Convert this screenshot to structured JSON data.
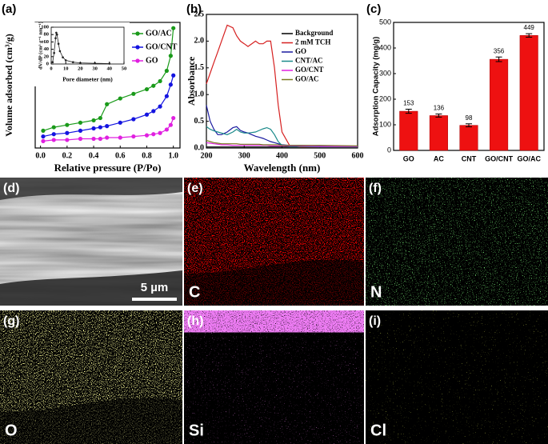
{
  "chart_data": [
    {
      "type": "line",
      "panel_label": "(a)",
      "xlabel": "Relative pressure (P/Po)",
      "ylabel": "Volume adsorbed (cm³/g)",
      "x": [
        0.02,
        0.1,
        0.2,
        0.3,
        0.4,
        0.45,
        0.5,
        0.6,
        0.7,
        0.8,
        0.85,
        0.9,
        0.95,
        0.98,
        1.0
      ],
      "series": [
        {
          "name": "GO/AC",
          "color": "#1a9a1a",
          "values": [
            10,
            13,
            15,
            17,
            19,
            21,
            33,
            38,
            42,
            46,
            49,
            53,
            62,
            75,
            99
          ]
        },
        {
          "name": "GO/CNT",
          "color": "#1414e0",
          "values": [
            5,
            7,
            8,
            10,
            12,
            13,
            14,
            17,
            20,
            24,
            27,
            31,
            40,
            50,
            58
          ]
        },
        {
          "name": "GO",
          "color": "#e020e0",
          "values": [
            1,
            2,
            2,
            3,
            3,
            3,
            4,
            4,
            5,
            6,
            7,
            8,
            11,
            15,
            21
          ]
        }
      ],
      "xlim": [
        -0.04,
        1.05
      ],
      "ylim": [
        -5,
        104
      ],
      "xticks": [
        {
          "value": 0,
          "label": "0.0"
        },
        0.2,
        0.4,
        0.6,
        0.8,
        {
          "value": 1,
          "label": "1.0"
        }
      ],
      "markers": true,
      "legend": "upper-right"
    },
    {
      "type": "line",
      "xlabel": "Pore diameter (nm)",
      "ylabel": "dV/dP (cm³ g⁻¹ nm⁻¹)",
      "x": [
        1,
        2,
        3,
        3.5,
        4,
        5,
        6,
        8,
        10,
        15,
        20,
        30,
        40
      ],
      "values": [
        5,
        30,
        70,
        85,
        80,
        55,
        35,
        18,
        10,
        5,
        3,
        2,
        1
      ],
      "color": "#222222",
      "xlim": [
        0,
        50
      ],
      "ylim": [
        0,
        100
      ],
      "xticks": [
        0,
        10,
        20,
        30,
        40,
        50
      ],
      "yticks": [
        0,
        20,
        40,
        60,
        80,
        100
      ],
      "markers": true
    },
    {
      "type": "line",
      "panel_label": "(b)",
      "xlabel": "Wavelength (nm)",
      "ylabel": "Absorbance",
      "x": [
        200,
        210,
        220,
        230,
        240,
        255,
        270,
        280,
        290,
        300,
        310,
        330,
        340,
        350,
        360,
        370,
        380,
        390,
        400,
        420,
        450,
        500,
        600
      ],
      "series": [
        {
          "name": "Background",
          "color": "#000000",
          "values": [
            0.02,
            0.02,
            0.02,
            0.02,
            0.02,
            0.02,
            0.02,
            0.02,
            0.02,
            0.02,
            0.02,
            0.02,
            0.02,
            0.02,
            0.02,
            0.02,
            0.02,
            0.02,
            0.02,
            0.02,
            0.02,
            0.02,
            0.02
          ]
        },
        {
          "name": "2 mM TCH",
          "color": "#d62020",
          "values": [
            1.2,
            1.4,
            1.6,
            1.8,
            2.0,
            2.3,
            2.25,
            2.1,
            2.0,
            1.95,
            1.9,
            2.0,
            1.95,
            1.95,
            2.0,
            2.0,
            1.5,
            0.8,
            0.3,
            0.05,
            0.02,
            0.02,
            0.02
          ]
        },
        {
          "name": "GO",
          "color": "#1a1aa0",
          "values": [
            0.8,
            0.5,
            0.35,
            0.25,
            0.25,
            0.3,
            0.38,
            0.4,
            0.33,
            0.3,
            0.28,
            0.22,
            0.2,
            0.18,
            0.15,
            0.12,
            0.1,
            0.08,
            0.06,
            0.05,
            0.05,
            0.04,
            0.03
          ]
        },
        {
          "name": "CNT/AC",
          "color": "#1a8a8a",
          "values": [
            0.4,
            0.35,
            0.32,
            0.3,
            0.28,
            0.25,
            0.3,
            0.35,
            0.3,
            0.28,
            0.28,
            0.3,
            0.33,
            0.36,
            0.38,
            0.35,
            0.25,
            0.12,
            0.05,
            0.03,
            0.03,
            0.02,
            0.02
          ]
        },
        {
          "name": "GO/CNT",
          "color": "#e020e0",
          "values": [
            0.1,
            0.09,
            0.08,
            0.07,
            0.06,
            0.06,
            0.05,
            0.05,
            0.05,
            0.05,
            0.05,
            0.05,
            0.05,
            0.05,
            0.05,
            0.04,
            0.04,
            0.04,
            0.04,
            0.04,
            0.04,
            0.03,
            0.03
          ]
        },
        {
          "name": "GO/AC",
          "color": "#7a7a20",
          "values": [
            0.14,
            0.12,
            0.1,
            0.09,
            0.08,
            0.08,
            0.08,
            0.08,
            0.07,
            0.07,
            0.07,
            0.07,
            0.07,
            0.06,
            0.06,
            0.06,
            0.06,
            0.06,
            0.05,
            0.05,
            0.05,
            0.05,
            0.04
          ]
        }
      ],
      "xlim": [
        200,
        600
      ],
      "ylim": [
        0,
        2.5
      ],
      "xticks": [
        200,
        300,
        400,
        500,
        600
      ],
      "yticks": [
        {
          "value": 0,
          "label": "0.0"
        },
        0.5,
        {
          "value": 1,
          "label": "1.0"
        },
        1.5,
        {
          "value": 2,
          "label": "2.0"
        },
        2.5
      ],
      "markers": false,
      "legend": "upper-right"
    },
    {
      "type": "bar",
      "panel_label": "(c)",
      "ylabel": "Adsorption Capacity (mg/g)",
      "categories": [
        "GO",
        "AC",
        "CNT",
        "GO/CNT",
        "GO/AC"
      ],
      "values": [
        153,
        136,
        98,
        356,
        449
      ],
      "errors": [
        8,
        6,
        6,
        9,
        7
      ],
      "color": "#ee1111",
      "ylim": [
        0,
        500
      ],
      "yticks": [
        0,
        100,
        200,
        300,
        400,
        500
      ]
    }
  ],
  "images": [
    {
      "label": "(d)",
      "scale_bar": "5 µm"
    },
    {
      "label": "(e)",
      "element": "C"
    },
    {
      "label": "(f)",
      "element": "N"
    },
    {
      "label": "(g)",
      "element": "O"
    },
    {
      "label": "(h)",
      "element": "Si"
    },
    {
      "label": "(i)",
      "element": "Cl"
    }
  ]
}
